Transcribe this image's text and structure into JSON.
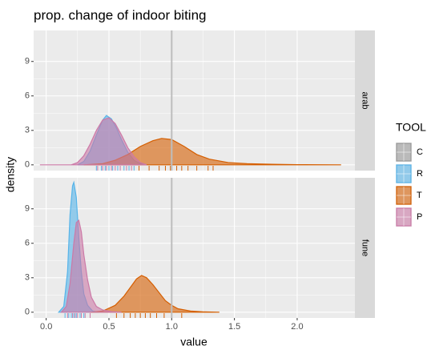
{
  "chart_data": {
    "type": "density",
    "title": "prop. change of indoor biting",
    "x_label": "value",
    "y_label": "density",
    "xlim": [
      -0.1,
      2.46
    ],
    "ylim": [
      -0.5,
      11.7
    ],
    "xticks": [
      {
        "value": 0,
        "label": "0.0"
      },
      {
        "value": 0.5,
        "label": "0.5"
      },
      {
        "value": 1,
        "label": "1.0"
      },
      {
        "value": 1.5,
        "label": "1.5"
      },
      {
        "value": 2,
        "label": "2.0"
      }
    ],
    "yticks": [
      0,
      3,
      6,
      9
    ],
    "grid": true,
    "vline": 1,
    "legend": {
      "title": "TOOL",
      "position": "right",
      "items": [
        {
          "name": "C",
          "color": "#999999"
        },
        {
          "name": "R",
          "color": "#56B4E9"
        },
        {
          "name": "T",
          "color": "#D55E00"
        },
        {
          "name": "P",
          "color": "#CC79A7"
        }
      ]
    },
    "facets": [
      {
        "label": "arab",
        "series": [
          {
            "name": "R",
            "color": "#56B4E9",
            "x": [
              0.25,
              0.3,
              0.35,
              0.4,
              0.45,
              0.48,
              0.52,
              0.56,
              0.6,
              0.65,
              0.7,
              0.75,
              0.8
            ],
            "values": [
              0,
              0.3,
              1.2,
              2.6,
              3.9,
              4.3,
              4.0,
              3.2,
              2.2,
              1.1,
              0.4,
              0.1,
              0
            ],
            "rug": [
              0.4,
              0.44,
              0.47,
              0.5,
              0.53,
              0.57,
              0.62,
              0.66,
              0.7
            ]
          },
          {
            "name": "T",
            "color": "#D55E00",
            "x": [
              0.3,
              0.45,
              0.55,
              0.65,
              0.75,
              0.85,
              0.92,
              1.0,
              1.1,
              1.2,
              1.3,
              1.45,
              1.6,
              1.8,
              2.0,
              2.2,
              2.35
            ],
            "values": [
              0,
              0.1,
              0.4,
              0.9,
              1.6,
              2.1,
              2.3,
              2.2,
              1.6,
              0.9,
              0.5,
              0.2,
              0.1,
              0.05,
              0.02,
              0.01,
              0
            ],
            "rug": [
              0.74,
              0.82,
              0.9,
              0.95,
              0.99,
              1.04,
              1.08,
              1.13,
              1.2,
              1.29,
              1.33
            ]
          },
          {
            "name": "P",
            "color": "#CC79A7",
            "x": [
              -0.05,
              0.2,
              0.25,
              0.3,
              0.35,
              0.4,
              0.45,
              0.5,
              0.55,
              0.6,
              0.65,
              0.7,
              0.75,
              0.8
            ],
            "values": [
              0,
              0,
              0.2,
              0.8,
              1.8,
              3.0,
              3.9,
              4.1,
              3.6,
              2.6,
              1.5,
              0.7,
              0.2,
              0
            ],
            "rug": [
              0.41,
              0.45,
              0.48,
              0.52,
              0.55,
              0.59,
              0.64,
              0.68
            ]
          }
        ]
      },
      {
        "label": "fune",
        "series": [
          {
            "name": "R",
            "color": "#56B4E9",
            "x": [
              0.1,
              0.14,
              0.17,
              0.19,
              0.21,
              0.22,
              0.24,
              0.26,
              0.28,
              0.3,
              0.33,
              0.37,
              0.42
            ],
            "values": [
              0,
              0.5,
              3.5,
              8.5,
              11.0,
              11.3,
              10.0,
              6.5,
              3.5,
              1.6,
              0.6,
              0.1,
              0
            ],
            "rug": [
              0.15,
              0.18,
              0.2,
              0.22,
              0.24,
              0.27,
              0.3
            ]
          },
          {
            "name": "T",
            "color": "#D55E00",
            "x": [
              0.35,
              0.45,
              0.55,
              0.62,
              0.68,
              0.72,
              0.76,
              0.8,
              0.85,
              0.9,
              0.95,
              1.0,
              1.05,
              1.15,
              1.25,
              1.38
            ],
            "values": [
              0,
              0.1,
              0.6,
              1.4,
              2.3,
              2.9,
              3.2,
              3.0,
              2.4,
              1.7,
              1.0,
              0.6,
              0.3,
              0.1,
              0.03,
              0
            ],
            "rug": [
              0.56,
              0.62,
              0.67,
              0.71,
              0.75,
              0.79,
              0.83,
              0.88,
              0.94,
              1.0,
              1.08
            ]
          },
          {
            "name": "P",
            "color": "#CC79A7",
            "x": [
              0.12,
              0.16,
              0.19,
              0.22,
              0.24,
              0.26,
              0.28,
              0.3,
              0.33,
              0.36,
              0.4,
              0.45,
              0.52,
              0.6
            ],
            "values": [
              0,
              0.5,
              2.5,
              6.0,
              7.8,
              8.0,
              7.0,
              5.0,
              2.8,
              1.3,
              0.5,
              0.2,
              0.05,
              0
            ],
            "rug": [
              0.17,
              0.21,
              0.23,
              0.25,
              0.28,
              0.31,
              0.35
            ]
          }
        ]
      }
    ]
  }
}
